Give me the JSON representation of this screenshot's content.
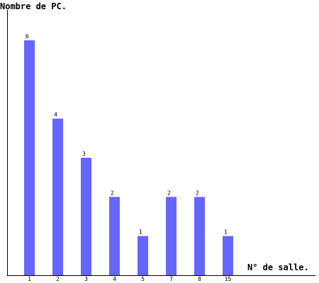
{
  "chart_data": {
    "type": "bar",
    "title": "",
    "ylabel": "Nombre de PC.",
    "xlabel": "N° de salle.",
    "categories": [
      "1",
      "2",
      "3",
      "4",
      "5",
      "7",
      "8",
      "15"
    ],
    "values": [
      6,
      4,
      3,
      2,
      1,
      2,
      2,
      1
    ],
    "ylim": [
      0,
      6
    ],
    "grid": false,
    "data_labels": true,
    "bar_color": "#6666ff"
  }
}
